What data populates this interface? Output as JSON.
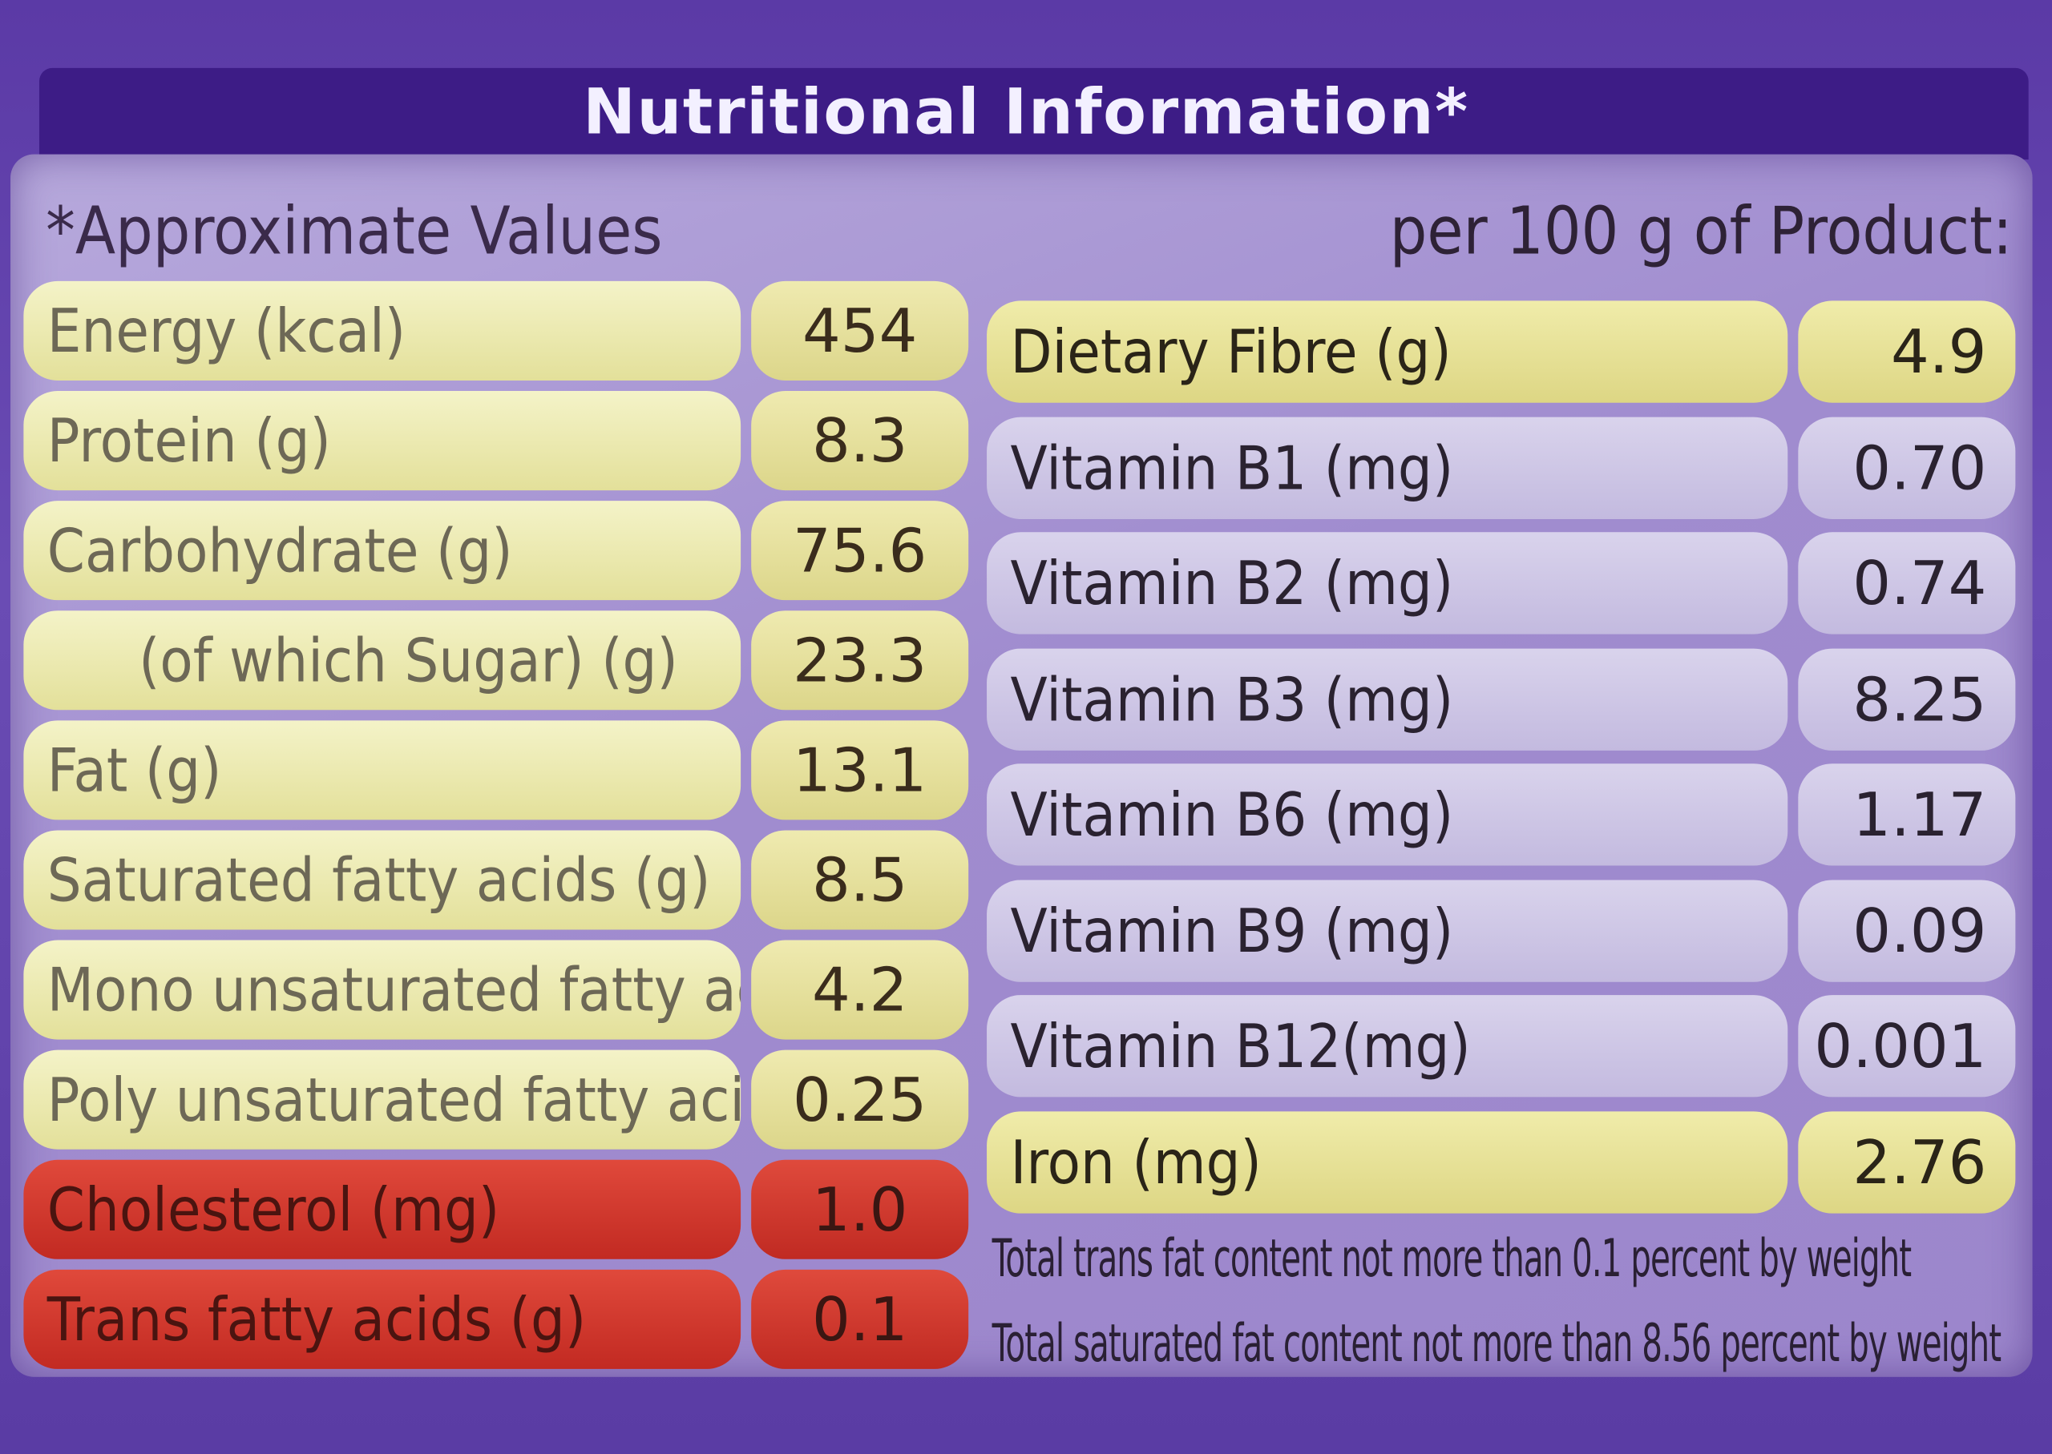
{
  "header": {
    "title": "Nutritional Information*",
    "note": "*Approximate Values",
    "per": "per 100 g of Product:"
  },
  "left_table": {
    "rows": [
      [
        "Energy (kcal)",
        "454"
      ],
      [
        "Protein (g)",
        "8.3"
      ],
      [
        "Carbohydrate (g)",
        "75.6"
      ],
      [
        "(of which Sugar) (g)",
        "23.3"
      ],
      [
        "Fat (g)",
        "13.1"
      ],
      [
        "Saturated fatty acids (g)",
        "8.5"
      ],
      [
        "Mono unsaturated fatty acids(g)",
        "4.2"
      ],
      [
        "Poly unsaturated fatty acids(g)",
        "0.25"
      ],
      [
        "Cholesterol (mg)",
        "1.0"
      ],
      [
        "Trans fatty acids (g)",
        "0.1"
      ]
    ]
  },
  "right_table": {
    "rows": [
      [
        "Dietary Fibre (g)",
        "4.9"
      ],
      [
        "Vitamin B1 (mg)",
        "0.70"
      ],
      [
        "Vitamin B2 (mg)",
        "0.74"
      ],
      [
        "Vitamin B3 (mg)",
        "8.25"
      ],
      [
        "Vitamin B6 (mg)",
        "1.17"
      ],
      [
        "Vitamin B9 (mg)",
        "0.09"
      ],
      [
        "Vitamin B12(mg)",
        "0.001"
      ],
      [
        "Iron (mg)",
        "2.76"
      ]
    ]
  },
  "footnotes": [
    "Total trans fat content not more than 0.1 percent by weight",
    "Total saturated fat content not more than 8.56 percent by weight"
  ]
}
